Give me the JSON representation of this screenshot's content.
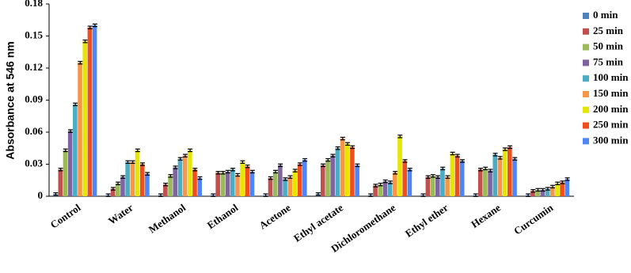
{
  "chart_data": {
    "type": "bar",
    "y_label": "Absorbance at 546 nm",
    "categories": [
      "Control",
      "Water",
      "Methanol",
      "Ethanol",
      "Acetone",
      "Ethyl acetate",
      "Dichloromethane",
      "Ethyl ether",
      "Hexane",
      "Curcumin"
    ],
    "series": [
      {
        "name": "0 min",
        "color": "#4f81bd",
        "values": [
          0.002,
          0.001,
          0.001,
          0.001,
          0.001,
          0.002,
          0.001,
          0.001,
          0.001,
          0.001
        ]
      },
      {
        "name": "25 min",
        "color": "#c0504d",
        "values": [
          0.025,
          0.007,
          0.011,
          0.022,
          0.017,
          0.029,
          0.01,
          0.018,
          0.025,
          0.005
        ]
      },
      {
        "name": "50 min",
        "color": "#9bbb59",
        "values": [
          0.043,
          0.012,
          0.019,
          0.022,
          0.023,
          0.034,
          0.011,
          0.019,
          0.026,
          0.006
        ]
      },
      {
        "name": "75 min",
        "color": "#8064a2",
        "values": [
          0.061,
          0.018,
          0.027,
          0.023,
          0.029,
          0.038,
          0.014,
          0.018,
          0.024,
          0.006
        ]
      },
      {
        "name": "100 min",
        "color": "#4bacc6",
        "values": [
          0.086,
          0.032,
          0.035,
          0.025,
          0.016,
          0.045,
          0.013,
          0.026,
          0.039,
          0.007
        ]
      },
      {
        "name": "150 min",
        "color": "#f79646",
        "values": [
          0.125,
          0.032,
          0.038,
          0.02,
          0.018,
          0.054,
          0.022,
          0.018,
          0.036,
          0.009
        ]
      },
      {
        "name": "200 min",
        "color": "#e6e600",
        "values": [
          0.145,
          0.043,
          0.043,
          0.032,
          0.024,
          0.049,
          0.056,
          0.04,
          0.044,
          0.012
        ]
      },
      {
        "name": "250 min",
        "color": "#f04e1c",
        "values": [
          0.158,
          0.03,
          0.025,
          0.028,
          0.03,
          0.046,
          0.033,
          0.038,
          0.046,
          0.013
        ]
      },
      {
        "name": "300 min",
        "color": "#4f86f7",
        "values": [
          0.16,
          0.021,
          0.017,
          0.023,
          0.034,
          0.029,
          0.025,
          0.033,
          0.035,
          0.016
        ]
      }
    ],
    "error": 0.0012,
    "ylim": [
      0,
      0.18
    ],
    "yticks": [
      0,
      0.03,
      0.06,
      0.09,
      0.12,
      0.15,
      0.18
    ]
  }
}
